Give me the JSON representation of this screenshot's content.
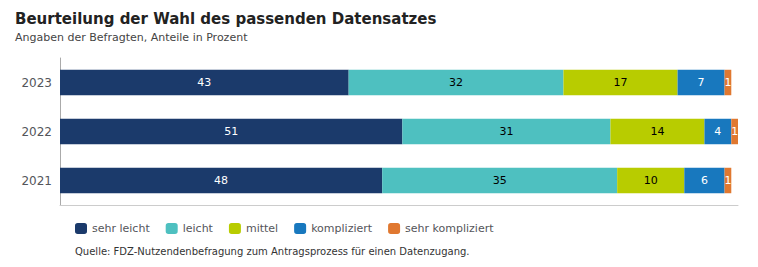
{
  "chart_data": {
    "type": "bar",
    "orientation": "horizontal",
    "stacked": true,
    "title": "Beurteilung der Wahl des passenden Datensatzes",
    "subtitle": "Angaben der Befragten, Anteile in Prozent",
    "source": "Quelle: FDZ-Nutzendenbefragung zum Antragsprozess für einen Datenzugang.",
    "categories": [
      "2021",
      "2022",
      "2023"
    ],
    "series": [
      {
        "name": "sehr leicht",
        "color": "#1b3a6b",
        "values": [
          48,
          51,
          43
        ]
      },
      {
        "name": "leicht",
        "color": "#4ec0c0",
        "values": [
          35,
          31,
          32
        ]
      },
      {
        "name": "mittel",
        "color": "#b8cc00",
        "values": [
          10,
          14,
          17
        ]
      },
      {
        "name": "kompliziert",
        "color": "#1878be",
        "values": [
          6,
          4,
          7
        ]
      },
      {
        "name": "sehr kompliziert",
        "color": "#e07830",
        "values": [
          1,
          1,
          1
        ]
      }
    ],
    "xlim": [
      0,
      101
    ],
    "data_labels": true,
    "tick_labels": "y",
    "grid": false,
    "legend": "lower left"
  }
}
